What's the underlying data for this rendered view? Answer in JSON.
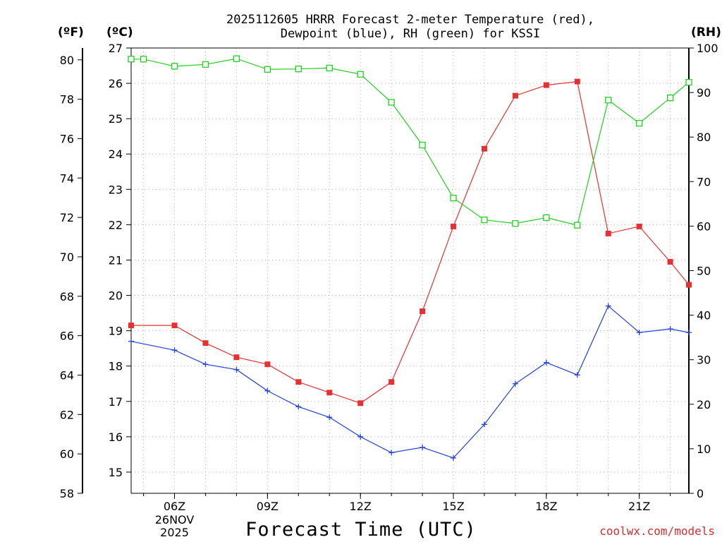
{
  "chart_data": {
    "type": "line",
    "title_line1": "2025112605 HRRR Forecast 2-meter Temperature (red),",
    "title_line2": "Dewpoint (blue), RH (green) for KSSI",
    "left_outer_unit": "(ºF)",
    "left_inner_unit": "(ºC)",
    "right_unit": "(RH)",
    "xlabel": "Forecast Time (UTC)",
    "x_range": [
      4.6,
      22.6
    ],
    "x_ticks": [
      {
        "x": 6,
        "label": "06Z"
      },
      {
        "x": 9,
        "label": "09Z"
      },
      {
        "x": 12,
        "label": "12Z"
      },
      {
        "x": 15,
        "label": "15Z"
      },
      {
        "x": 18,
        "label": "18Z"
      },
      {
        "x": 21,
        "label": "21Z"
      }
    ],
    "date_label_line1": "26NOV",
    "date_label_line2": "2025",
    "celsius_axis": {
      "range": [
        14.4,
        27
      ],
      "ticks": [
        15,
        16,
        17,
        18,
        19,
        20,
        21,
        22,
        23,
        24,
        25,
        26,
        27
      ]
    },
    "fahrenheit_axis": {
      "range": [
        58,
        80.6
      ],
      "ticks": [
        58,
        60,
        62,
        64,
        66,
        68,
        70,
        72,
        74,
        76,
        78,
        80
      ]
    },
    "rh_axis": {
      "range": [
        0,
        100
      ],
      "ticks": [
        0,
        10,
        20,
        30,
        40,
        50,
        60,
        70,
        80,
        90,
        100
      ]
    },
    "series": [
      {
        "name": "Temperature",
        "color": "#e83030",
        "marker": "filled-square",
        "axis": "celsius",
        "x": [
          4.6,
          6,
          7,
          8,
          9,
          10,
          11,
          12,
          13,
          14,
          15,
          16,
          17,
          18,
          19,
          20,
          21,
          22,
          22.6
        ],
        "values": [
          19.15,
          19.15,
          18.65,
          18.25,
          18.05,
          17.55,
          17.25,
          16.95,
          17.55,
          19.55,
          21.95,
          24.15,
          25.65,
          25.95,
          26.05,
          21.75,
          21.95,
          20.95,
          20.3
        ]
      },
      {
        "name": "Dewpoint",
        "color": "#2040e0",
        "marker": "plus",
        "axis": "celsius",
        "x": [
          4.6,
          6,
          7,
          8,
          9,
          10,
          11,
          12,
          13,
          14,
          15,
          16,
          17,
          18,
          19,
          20,
          21,
          22,
          22.6
        ],
        "values": [
          18.7,
          18.45,
          18.05,
          17.9,
          17.3,
          16.85,
          16.55,
          16.0,
          15.55,
          15.7,
          15.4,
          16.35,
          17.5,
          18.1,
          17.75,
          19.7,
          18.95,
          19.05,
          18.95
        ]
      },
      {
        "name": "RH",
        "color": "#20d020",
        "marker": "open-square",
        "axis": "rh",
        "x": [
          4.6,
          5,
          6,
          7,
          8,
          9,
          10,
          11,
          12,
          13,
          14,
          15,
          16,
          17,
          18,
          19,
          20,
          21,
          22,
          22.6
        ],
        "values": [
          97.5,
          97.5,
          95.9,
          96.3,
          97.6,
          95.2,
          95.3,
          95.5,
          94.1,
          87.8,
          78.2,
          66.3,
          61.4,
          60.6,
          61.9,
          60.2,
          88.3,
          83.1,
          88.8,
          92.3
        ]
      }
    ]
  },
  "footer": "coolwx.com/models"
}
